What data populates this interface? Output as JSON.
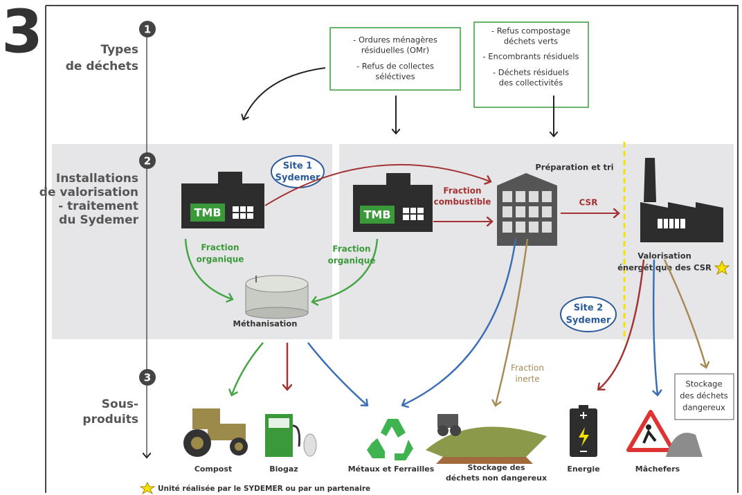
{
  "number": "3",
  "steps": [
    {
      "number": "1",
      "lines": [
        "Types",
        "de déchets"
      ]
    },
    {
      "number": "2",
      "lines": [
        "Installations",
        "de valorisation",
        "- traitement",
        "du Sydemer"
      ]
    },
    {
      "number": "3",
      "lines": [
        "Sous-",
        "produits"
      ]
    }
  ],
  "sources": [
    [
      "- Ordures ménagères",
      "résiduelles (OMr)",
      "- Refus de collectes",
      "séléctives"
    ],
    [
      "- Refus compostage",
      "déchets verts",
      "- Encombrants résiduels",
      "- Déchets résiduels",
      "des collectivités"
    ]
  ],
  "site1": {
    "name": [
      "Site 1",
      "Sydemer"
    ],
    "tmb": "TMB",
    "tmb2": "TMB"
  },
  "site2": {
    "name": [
      "Site 2",
      "Sydemer"
    ]
  },
  "flows": {
    "combustible": [
      "Fraction",
      "combustible"
    ],
    "csr": "CSR",
    "organique1": [
      "Fraction",
      "organique"
    ],
    "organique2": [
      "Fraction",
      "organique"
    ],
    "inerte": [
      "Fraction",
      "inerte"
    ]
  },
  "facilities": {
    "sorting": "Préparation et tri",
    "valorisation": [
      "Valorisation",
      "énergétique des CSR"
    ],
    "methanisation": "Méthanisation",
    "dangereux": [
      "Stockage",
      "des déchets",
      "dangereux"
    ]
  },
  "products": [
    {
      "lines": [
        "Compost"
      ]
    },
    {
      "lines": [
        "Biogaz"
      ]
    },
    {
      "lines": [
        "Métaux et Ferrailles"
      ]
    },
    {
      "lines": [
        "Stockage des",
        "déchets non dangereux"
      ]
    },
    {
      "lines": [
        "Energie"
      ]
    },
    {
      "lines": [
        "Mâchefers"
      ]
    }
  ],
  "footnote": "Unité réalisée par le SYDEMER ou par un partenaire"
}
